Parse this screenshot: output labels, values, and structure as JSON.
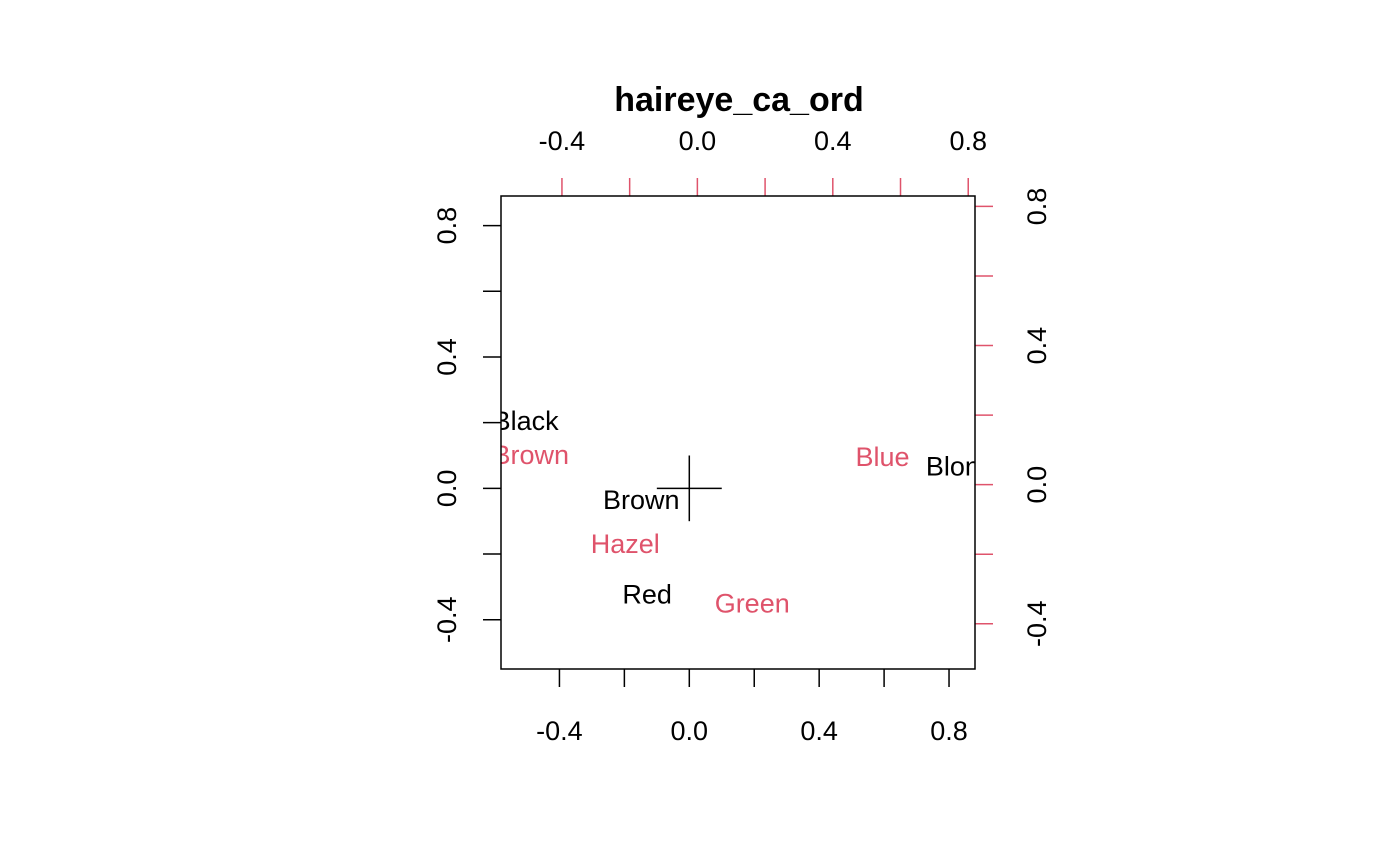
{
  "chart_data": {
    "type": "scatter",
    "title": "haireye_ca_ord",
    "xlabel": "",
    "ylabel": "",
    "grid": false,
    "primary_axes": {
      "color": "#000000",
      "xlim": [
        -0.58,
        0.88
      ],
      "ylim": [
        -0.55,
        0.89
      ],
      "xticks": [
        -0.4,
        -0.2,
        0.0,
        0.2,
        0.4,
        0.6,
        0.8
      ],
      "xtick_labels": [
        "-0.4",
        "0.0",
        "0.4",
        "0.8"
      ],
      "xtick_label_values": [
        -0.4,
        0.0,
        0.4,
        0.8
      ],
      "yticks": [
        -0.4,
        -0.2,
        0.0,
        0.2,
        0.4,
        0.6,
        0.8
      ],
      "ytick_labels": [
        "-0.4",
        "0.0",
        "0.4",
        "0.8"
      ],
      "ytick_label_values": [
        -0.4,
        0.0,
        0.4,
        0.8
      ]
    },
    "secondary_axes": {
      "color": "#DF536B",
      "xlim": [
        -0.58,
        0.82
      ],
      "ylim": [
        -0.53,
        0.83
      ],
      "xticks": [
        -0.4,
        -0.2,
        0.0,
        0.2,
        0.4,
        0.6,
        0.8
      ],
      "xtick_labels": [
        "-0.4",
        "0.0",
        "0.4",
        "0.8"
      ],
      "xtick_label_values": [
        -0.4,
        0.0,
        0.4,
        0.8
      ],
      "yticks": [
        -0.4,
        -0.2,
        0.0,
        0.2,
        0.4,
        0.6,
        0.8
      ],
      "ytick_labels": [
        "-0.4",
        "0.0",
        "0.4",
        "0.8"
      ],
      "ytick_label_values": [
        -0.4,
        0.0,
        0.4,
        0.8
      ]
    },
    "origin_cross": {
      "x": 0.0,
      "y": 0.0,
      "half_length": 0.1
    },
    "series": [
      {
        "axes": "primary",
        "color": "#000000",
        "points": [
          {
            "label": "Black",
            "x": -0.504,
            "y": 0.208
          },
          {
            "label": "Brown",
            "x": -0.148,
            "y": -0.033
          },
          {
            "label": "Red",
            "x": -0.13,
            "y": -0.32
          },
          {
            "label": "Blond",
            "x": 0.835,
            "y": 0.069
          }
        ]
      },
      {
        "axes": "secondary",
        "color": "#DF536B",
        "points": [
          {
            "label": "Brown",
            "x": -0.492,
            "y": 0.088
          },
          {
            "label": "Blue",
            "x": 0.547,
            "y": 0.083
          },
          {
            "label": "Hazel",
            "x": -0.213,
            "y": -0.167
          },
          {
            "label": "Green",
            "x": 0.162,
            "y": -0.339
          }
        ]
      }
    ]
  }
}
